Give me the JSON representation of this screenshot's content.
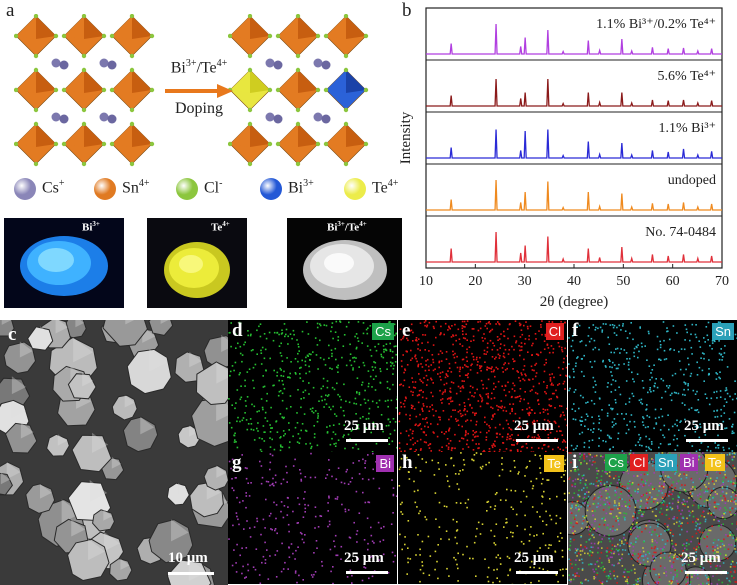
{
  "panel_labels": {
    "a": "a",
    "b": "b",
    "c": "c",
    "d": "d",
    "e": "e",
    "f": "f",
    "g": "g",
    "h": "h",
    "i": "i"
  },
  "doping": {
    "line1": "Bi",
    "line1_sup": "3+",
    "line1_sep": "/Te",
    "line1_sup2": "4+",
    "line2": "Doping"
  },
  "legend": [
    {
      "symbol": "Cs",
      "sup": "+",
      "color": "#8a86b8"
    },
    {
      "symbol": "Sn",
      "sup": "4+",
      "color": "#e07a22"
    },
    {
      "symbol": "Cl",
      "sup": "-",
      "color": "#8cc63e"
    },
    {
      "symbol": "Bi",
      "sup": "3+",
      "color": "#2358d6"
    },
    {
      "symbol": "Te",
      "sup": "4+",
      "color": "#ecec4a"
    }
  ],
  "photos": [
    {
      "label": "Bi",
      "sup": "3+",
      "sep": "",
      "label2": "",
      "sup2": ""
    },
    {
      "label": "Te",
      "sup": "4+",
      "sep": "",
      "label2": "",
      "sup2": ""
    },
    {
      "label": "Bi",
      "sup": "3+",
      "sep": "/",
      "label2": "Te",
      "sup2": "4+"
    }
  ],
  "chart_data": {
    "type": "line",
    "xlabel": "2θ (degree)",
    "ylabel": "Intensity",
    "xlim": [
      10,
      70
    ],
    "xticks": [
      10,
      20,
      30,
      40,
      50,
      60,
      70
    ],
    "series": [
      {
        "name": "1.1% Bi³⁺/0.2% Te⁴⁺",
        "color": "#b13fe0",
        "peaks": [
          [
            15.1,
            0.35
          ],
          [
            24.2,
            1.0
          ],
          [
            29.2,
            0.25
          ],
          [
            30.1,
            0.55
          ],
          [
            34.7,
            0.8
          ],
          [
            37.8,
            0.08
          ],
          [
            42.9,
            0.45
          ],
          [
            45.2,
            0.12
          ],
          [
            49.7,
            0.5
          ],
          [
            51.7,
            0.1
          ],
          [
            55.9,
            0.22
          ],
          [
            59.1,
            0.18
          ],
          [
            62.2,
            0.2
          ],
          [
            65.1,
            0.1
          ],
          [
            67.9,
            0.18
          ]
        ]
      },
      {
        "name": "5.6% Te⁴⁺",
        "color": "#8b1a1a",
        "peaks": [
          [
            15.1,
            0.35
          ],
          [
            24.2,
            0.9
          ],
          [
            29.2,
            0.25
          ],
          [
            30.1,
            0.45
          ],
          [
            34.7,
            0.9
          ],
          [
            37.8,
            0.08
          ],
          [
            42.9,
            0.45
          ],
          [
            45.2,
            0.12
          ],
          [
            49.7,
            0.45
          ],
          [
            51.7,
            0.1
          ],
          [
            55.9,
            0.2
          ],
          [
            59.1,
            0.18
          ],
          [
            62.2,
            0.2
          ],
          [
            65.1,
            0.1
          ],
          [
            67.9,
            0.18
          ]
        ]
      },
      {
        "name": "1.1% Bi³⁺",
        "color": "#2a2ad6",
        "peaks": [
          [
            15.1,
            0.35
          ],
          [
            24.2,
            0.95
          ],
          [
            29.2,
            0.25
          ],
          [
            30.1,
            0.9
          ],
          [
            34.7,
            0.95
          ],
          [
            37.8,
            0.08
          ],
          [
            42.9,
            0.55
          ],
          [
            45.2,
            0.12
          ],
          [
            49.7,
            0.5
          ],
          [
            51.7,
            0.1
          ],
          [
            55.9,
            0.25
          ],
          [
            59.1,
            0.2
          ],
          [
            62.2,
            0.3
          ],
          [
            65.1,
            0.1
          ],
          [
            67.9,
            0.22
          ]
        ]
      },
      {
        "name": "undoped",
        "color": "#ef8a1f",
        "peaks": [
          [
            15.1,
            0.35
          ],
          [
            24.2,
            1.0
          ],
          [
            29.2,
            0.25
          ],
          [
            30.1,
            0.6
          ],
          [
            34.7,
            0.95
          ],
          [
            37.8,
            0.08
          ],
          [
            42.9,
            0.6
          ],
          [
            45.2,
            0.12
          ],
          [
            49.7,
            0.55
          ],
          [
            51.7,
            0.1
          ],
          [
            55.9,
            0.22
          ],
          [
            59.1,
            0.2
          ],
          [
            62.2,
            0.25
          ],
          [
            65.1,
            0.1
          ],
          [
            67.9,
            0.2
          ]
        ]
      },
      {
        "name": "No. 74-0484",
        "color": "#e0303a",
        "peaks": [
          [
            15.1,
            0.45
          ],
          [
            24.2,
            1.0
          ],
          [
            29.2,
            0.3
          ],
          [
            30.1,
            0.55
          ],
          [
            34.7,
            0.85
          ],
          [
            37.8,
            0.1
          ],
          [
            42.9,
            0.45
          ],
          [
            45.2,
            0.15
          ],
          [
            49.7,
            0.5
          ],
          [
            51.7,
            0.12
          ],
          [
            55.9,
            0.25
          ],
          [
            59.1,
            0.2
          ],
          [
            62.2,
            0.25
          ],
          [
            65.1,
            0.12
          ],
          [
            67.9,
            0.2
          ]
        ]
      }
    ]
  },
  "sem": {
    "scale": "10 μm"
  },
  "maps": [
    {
      "panel": "d",
      "element": "Cs",
      "tag_bg": "#1da24a",
      "tag_fg": "#fff",
      "dot": "#26c032",
      "scale": "25 μm"
    },
    {
      "panel": "e",
      "element": "Cl",
      "tag_bg": "#e02020",
      "tag_fg": "#fff",
      "dot": "#e01414",
      "scale": "25 μm"
    },
    {
      "panel": "f",
      "element": "Sn",
      "tag_bg": "#2aa0b8",
      "tag_fg": "#fff",
      "dot": "#2fb6c6",
      "scale": "25 μm"
    },
    {
      "panel": "g",
      "element": "Bi",
      "tag_bg": "#a030b0",
      "tag_fg": "#fff",
      "dot": "#a13cb4",
      "scale": "25 μm"
    },
    {
      "panel": "h",
      "element": "Te",
      "tag_bg": "#f2c21a",
      "tag_fg": "#fff",
      "dot": "#d8d232",
      "scale": "25 μm"
    }
  ],
  "overlay": {
    "tags": [
      {
        "t": "Cs",
        "bg": "#1da24a",
        "fg": "#fff"
      },
      {
        "t": "Cl",
        "bg": "#e02020",
        "fg": "#fff"
      },
      {
        "t": "Sn",
        "bg": "#2aa0b8",
        "fg": "#fff"
      },
      {
        "t": "Bi",
        "bg": "#a030b0",
        "fg": "#fff"
      },
      {
        "t": "Te",
        "bg": "#f2c21a",
        "fg": "#fff"
      }
    ],
    "scale": "25 μm"
  }
}
